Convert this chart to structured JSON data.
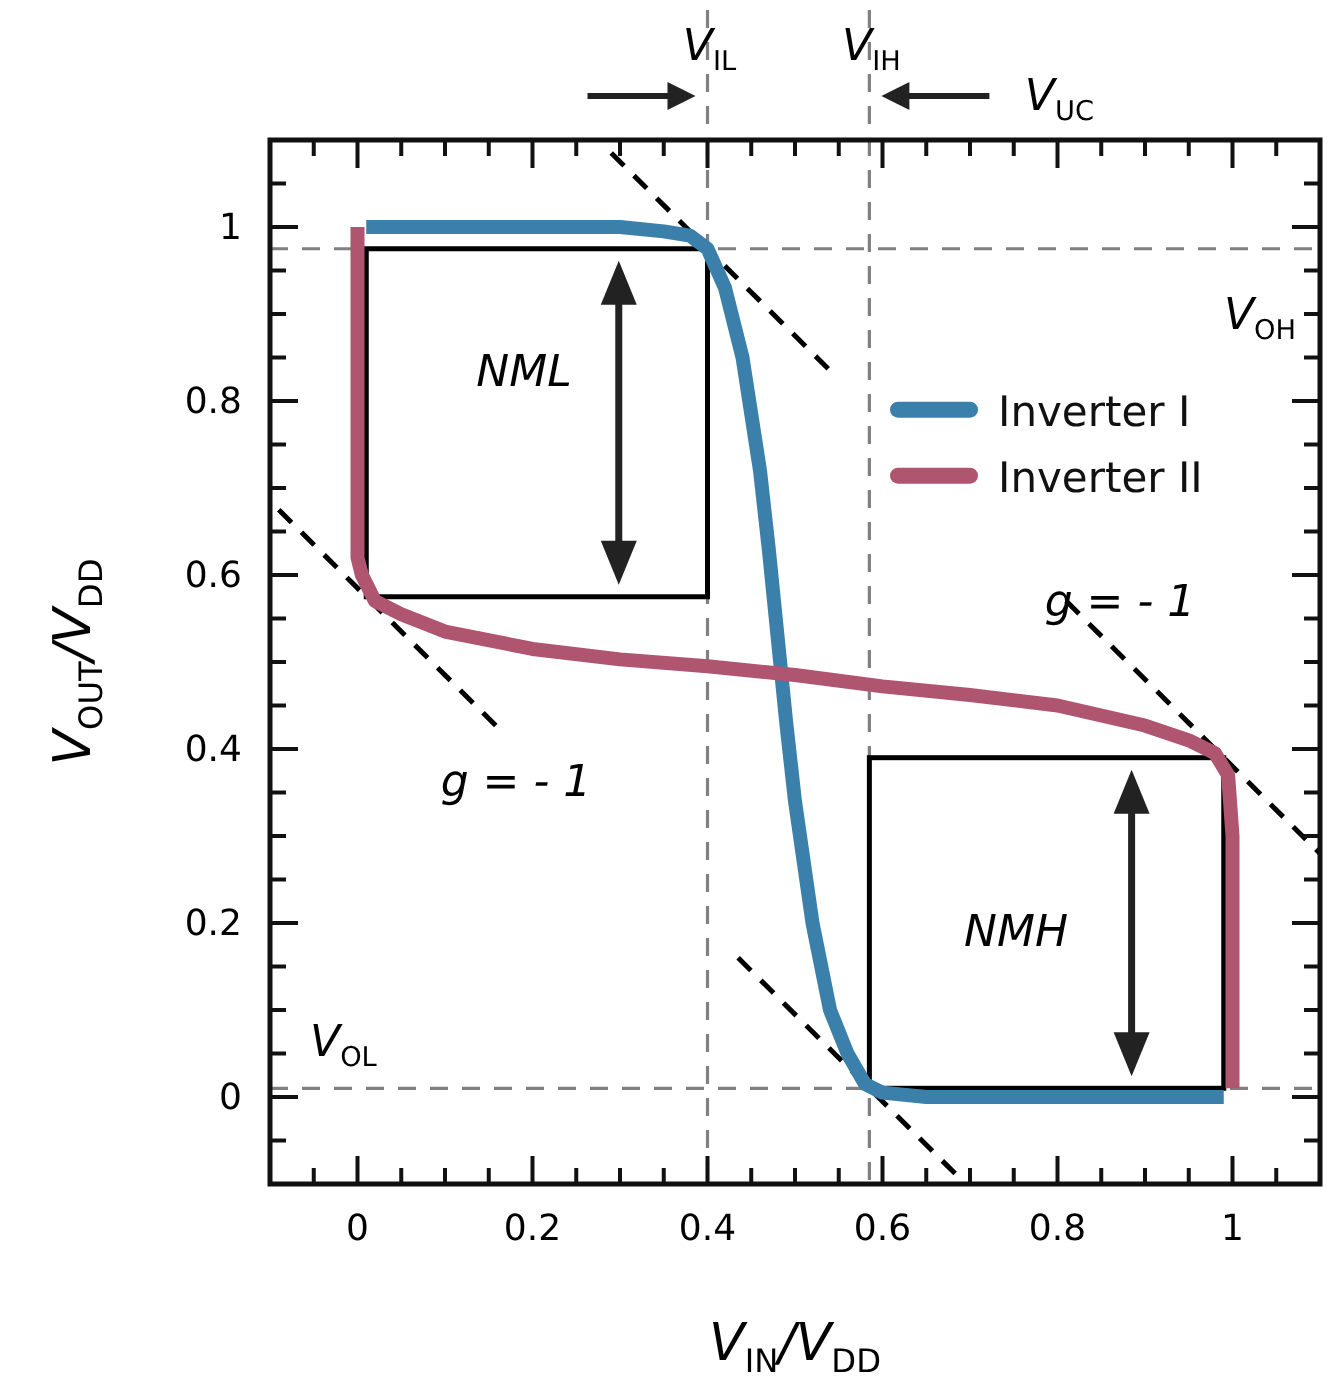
{
  "chart_data": {
    "type": "line",
    "xlabel": "V$_{IN}$/V$_{DD}$",
    "ylabel": "V$_{OUT}$/V$_{DD}$",
    "xlim": [
      -0.1,
      1.1
    ],
    "ylim": [
      -0.1,
      1.1
    ],
    "xticks": [
      {
        "value": -0.05,
        "label": null
      },
      0,
      {
        "value": 0.05,
        "label": null
      },
      {
        "value": 0.1,
        "label": null
      },
      {
        "value": 0.15,
        "label": null
      },
      0.2,
      {
        "value": 0.25,
        "label": null
      },
      {
        "value": 0.3,
        "label": null
      },
      {
        "value": 0.35,
        "label": null
      },
      0.4,
      {
        "value": 0.45,
        "label": null
      },
      {
        "value": 0.5,
        "label": null
      },
      {
        "value": 0.55,
        "label": null
      },
      0.6,
      {
        "value": 0.65,
        "label": null
      },
      {
        "value": 0.7,
        "label": null
      },
      {
        "value": 0.75,
        "label": null
      },
      0.8,
      {
        "value": 0.85,
        "label": null
      },
      {
        "value": 0.9,
        "label": null
      },
      {
        "value": 0.95,
        "label": null
      },
      1,
      {
        "value": 1.05,
        "label": null
      }
    ],
    "yticks": [
      {
        "value": -0.05,
        "label": null
      },
      0,
      {
        "value": 0.05,
        "label": null
      },
      {
        "value": 0.1,
        "label": null
      },
      {
        "value": 0.15,
        "label": null
      },
      0.2,
      {
        "value": 0.25,
        "label": null
      },
      {
        "value": 0.3,
        "label": null
      },
      {
        "value": 0.35,
        "label": null
      },
      0.4,
      {
        "value": 0.45,
        "label": null
      },
      {
        "value": 0.5,
        "label": null
      },
      {
        "value": 0.55,
        "label": null
      },
      0.6,
      {
        "value": 0.65,
        "label": null
      },
      {
        "value": 0.7,
        "label": null
      },
      {
        "value": 0.75,
        "label": null
      },
      0.8,
      {
        "value": 0.85,
        "label": null
      },
      {
        "value": 0.9,
        "label": null
      },
      {
        "value": 0.95,
        "label": null
      },
      1,
      {
        "value": 1.05,
        "label": null
      }
    ],
    "series": [
      {
        "name": "Inverter I",
        "color": "#3a80aa",
        "x": [
          0.01,
          0.3,
          0.35,
          0.38,
          0.4,
          0.42,
          0.44,
          0.46,
          0.47,
          0.48,
          0.49,
          0.5,
          0.52,
          0.54,
          0.56,
          0.58,
          0.6,
          0.65,
          0.99
        ],
        "values": [
          1.0,
          1.0,
          0.995,
          0.99,
          0.975,
          0.93,
          0.85,
          0.72,
          0.63,
          0.53,
          0.43,
          0.34,
          0.2,
          0.1,
          0.05,
          0.015,
          0.005,
          0,
          0
        ]
      },
      {
        "name": "Inverter II",
        "color": "#b05570",
        "x": [
          0,
          0,
          0.005,
          0.02,
          0.05,
          0.1,
          0.2,
          0.3,
          0.4,
          0.5,
          0.6,
          0.7,
          0.8,
          0.9,
          0.95,
          0.98,
          0.995,
          1.0,
          1.0
        ],
        "values": [
          1.0,
          0.62,
          0.6,
          0.57,
          0.555,
          0.535,
          0.515,
          0.503,
          0.495,
          0.485,
          0.472,
          0.462,
          0.45,
          0.427,
          0.41,
          0.395,
          0.37,
          0.3,
          0.01
        ]
      },
      {
        "color": "#000000",
        "line_style": "dashed",
        "x": [
          0.29,
          0.4,
          0.545
        ],
        "values": [
          1.085,
          0.975,
          0.83
        ]
      },
      {
        "color": "#000000",
        "line_style": "dashed",
        "x": [
          -0.09,
          0.01,
          0.165
        ],
        "values": [
          0.675,
          0.575,
          0.42
        ]
      },
      {
        "color": "#000000",
        "line_style": "dashed",
        "x": [
          0.435,
          0.585,
          0.69
        ],
        "values": [
          0.16,
          0.01,
          -0.095
        ]
      },
      {
        "color": "#000000",
        "line_style": "dashed",
        "x": [
          0.81,
          0.99,
          1.1
        ],
        "values": [
          0.57,
          0.39,
          0.28
        ]
      }
    ],
    "ref_lines": [
      {
        "axis": "x",
        "value": 0.4,
        "label": "V$_{IL}$",
        "color": "#808080",
        "line_style": "dashed"
      },
      {
        "axis": "x",
        "value": 0.585,
        "label": "V$_{IH}$",
        "color": "#808080",
        "line_style": "dashed"
      },
      {
        "axis": "y",
        "value": 0.975,
        "label": "V$_{OH}$",
        "color": "#808080",
        "line_style": "dashed"
      },
      {
        "axis": "y",
        "value": 0.01,
        "label": "V$_{OL}$",
        "color": "#808080",
        "line_style": "dashed"
      }
    ],
    "annotations": [
      "NML",
      "NMH",
      "g = - 1",
      "g = - 1",
      "V$_{UC}$"
    ],
    "legend": "right"
  }
}
